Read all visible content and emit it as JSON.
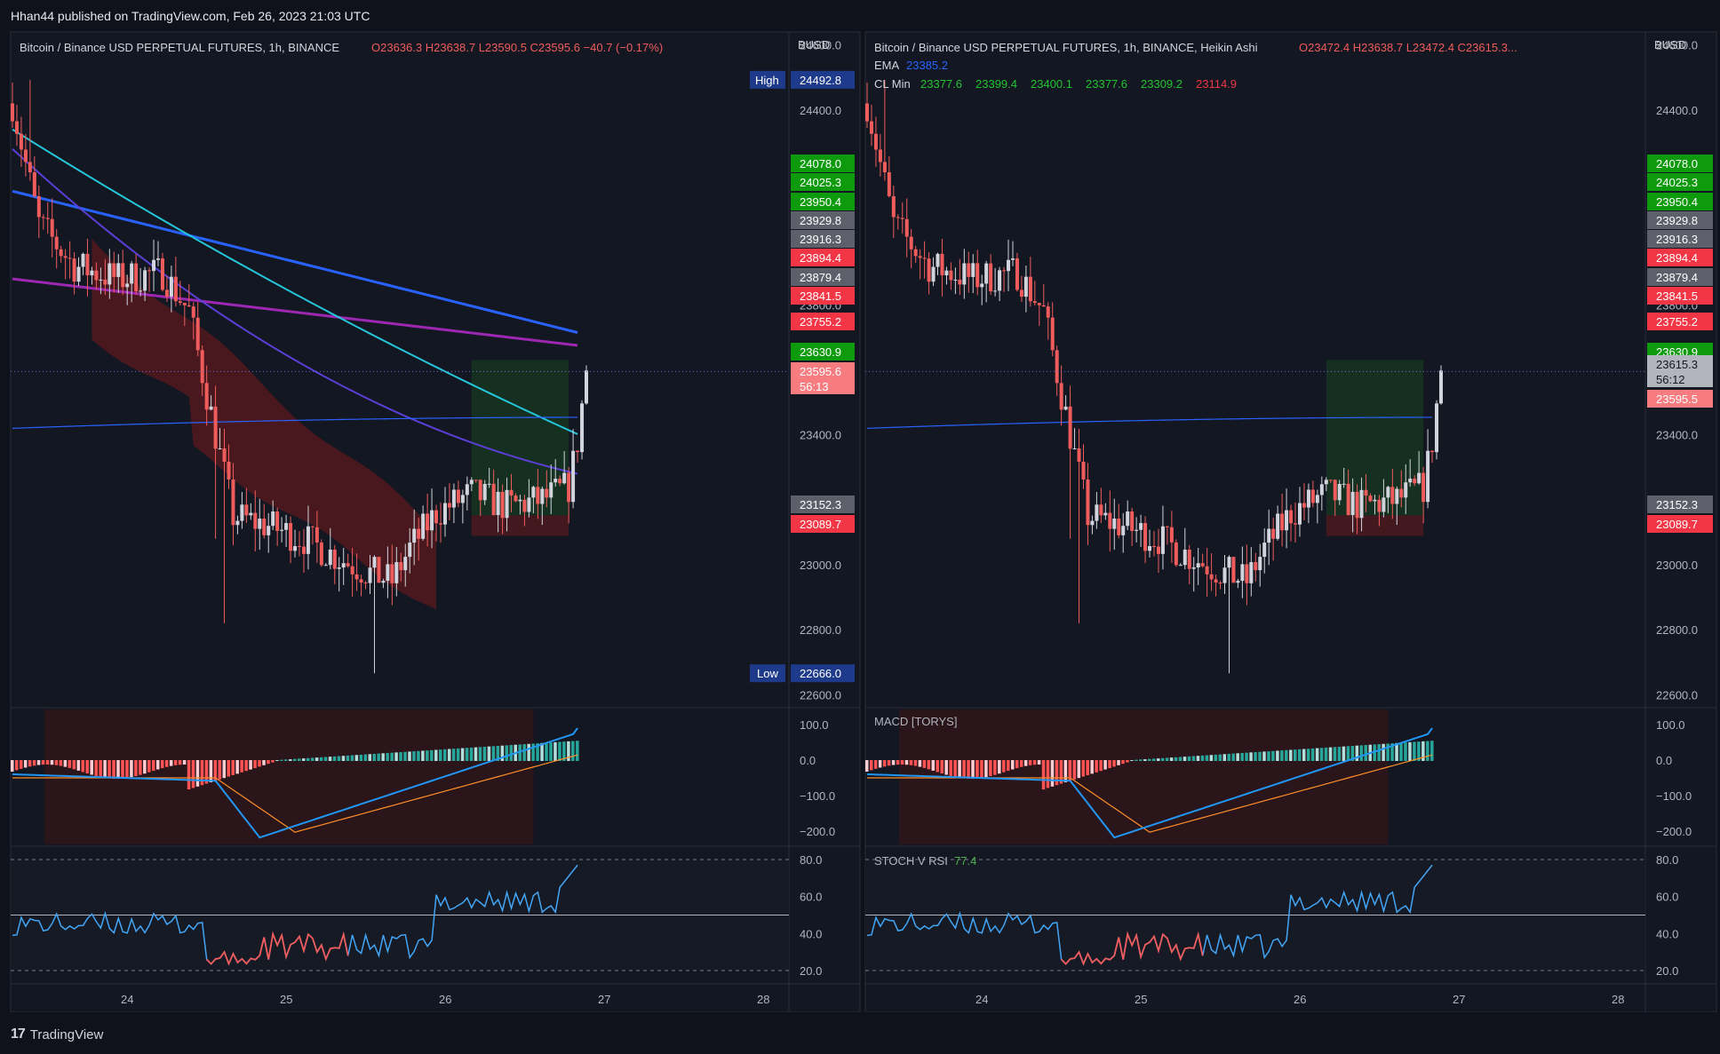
{
  "header": {
    "publish_text": "Hhan44 published on TradingView.com, Feb 26, 2023 21:03 UTC"
  },
  "footer": {
    "brand": "TradingView"
  },
  "colors": {
    "up": "#d1d4dc",
    "down": "#f05c5c",
    "ema1": "#2962ff",
    "ema2": "#9c27b0",
    "ema3": "#26c6da",
    "ema4": "#5b3fd6",
    "band": "#8b1a1a",
    "macd": "#2196f3",
    "signal": "#ff8f28",
    "stoch": "#42a5f5",
    "green_box": "#1b5e20",
    "label_green": "#0d9b0d",
    "label_red": "#f23645",
    "label_gray": "#5d606b"
  },
  "chart_data": [
    {
      "type": "candlestick",
      "title": "Bitcoin / Binance USD PERPETUAL FUTURES, 1h, BINANCE",
      "ohlc_text": {
        "o": "O23636.3",
        "h": "H23638.7",
        "l": "L23590.5",
        "c": "C23595.6",
        "chg": "−40.7 (−0.17%)"
      },
      "currency": "BUSD",
      "ylim": [
        22560,
        24640
      ],
      "y_ticks": [
        "24600.0",
        "24400.0",
        "23800.0",
        "23400.0",
        "23200.0",
        "23000.0",
        "22800.0",
        "22600.0"
      ],
      "x_ticks": [
        "24",
        "25",
        "26",
        "27",
        "28"
      ],
      "high_label": {
        "tag": "High",
        "value": "24492.8"
      },
      "low_label": {
        "tag": "Low",
        "value": "22666.0"
      },
      "price_labels": [
        {
          "value": "24078.0",
          "color": "green"
        },
        {
          "value": "24025.3",
          "color": "green"
        },
        {
          "value": "23950.4",
          "color": "green"
        },
        {
          "value": "23929.8",
          "color": "gray"
        },
        {
          "value": "23916.3",
          "color": "gray"
        },
        {
          "value": "23894.4",
          "color": "red"
        },
        {
          "value": "23879.4",
          "color": "gray"
        },
        {
          "value": "23841.5",
          "color": "red"
        },
        {
          "value": "23755.2",
          "color": "red"
        },
        {
          "value": "23630.9",
          "color": "green"
        },
        {
          "value": "23152.3",
          "color": "gray"
        },
        {
          "value": "23089.7",
          "color": "red"
        }
      ],
      "last_price": {
        "value": "23595.6",
        "countdown": "56:13"
      },
      "macd_ticks": [
        "100.0",
        "0.0",
        "−100.0",
        "−200.0"
      ],
      "stoch_ticks": [
        "80.0",
        "60.0",
        "40.0",
        "20.0"
      ]
    },
    {
      "type": "candlestick",
      "title": "Bitcoin / Binance USD PERPETUAL FUTURES, 1h, BINANCE, Heikin Ashi",
      "ohlc_text": {
        "o": "O23472.4",
        "h": "H23638.7",
        "l": "L23472.4",
        "c": "C23615.3..."
      },
      "currency": "BUSD",
      "ylim": [
        22560,
        24640
      ],
      "y_ticks": [
        "24600.0",
        "24400.0",
        "23800.0",
        "23400.0",
        "23200.0",
        "23000.0",
        "22800.0",
        "22600.0"
      ],
      "x_ticks": [
        "24",
        "25",
        "26",
        "27",
        "28"
      ],
      "ema_legend": {
        "name": "EMA",
        "value": "23385.2"
      },
      "cl_legend": {
        "name": "CL Min",
        "values": [
          "23377.6",
          "23399.4",
          "23400.1",
          "23377.6",
          "23309.2",
          "23114.9"
        ]
      },
      "price_labels": [
        {
          "value": "24078.0",
          "color": "green"
        },
        {
          "value": "24025.3",
          "color": "green"
        },
        {
          "value": "23950.4",
          "color": "green"
        },
        {
          "value": "23929.8",
          "color": "gray"
        },
        {
          "value": "23916.3",
          "color": "gray"
        },
        {
          "value": "23894.4",
          "color": "red"
        },
        {
          "value": "23879.4",
          "color": "gray"
        },
        {
          "value": "23841.5",
          "color": "red"
        },
        {
          "value": "23755.2",
          "color": "red"
        },
        {
          "value": "23630.9",
          "color": "green"
        },
        {
          "value": "23152.3",
          "color": "gray"
        },
        {
          "value": "23089.7",
          "color": "red"
        }
      ],
      "last_price": {
        "value": "23615.3",
        "countdown": "56:12"
      },
      "close_label": "23595.5",
      "macd_label": "MACD [TORYS]",
      "stoch_label": "STOCH V RSI",
      "stoch_value": "77.4",
      "macd_ticks": [
        "100.0",
        "0.0",
        "−100.0",
        "−200.0"
      ],
      "stoch_ticks": [
        "80.0",
        "60.0",
        "40.0",
        "20.0"
      ]
    }
  ]
}
